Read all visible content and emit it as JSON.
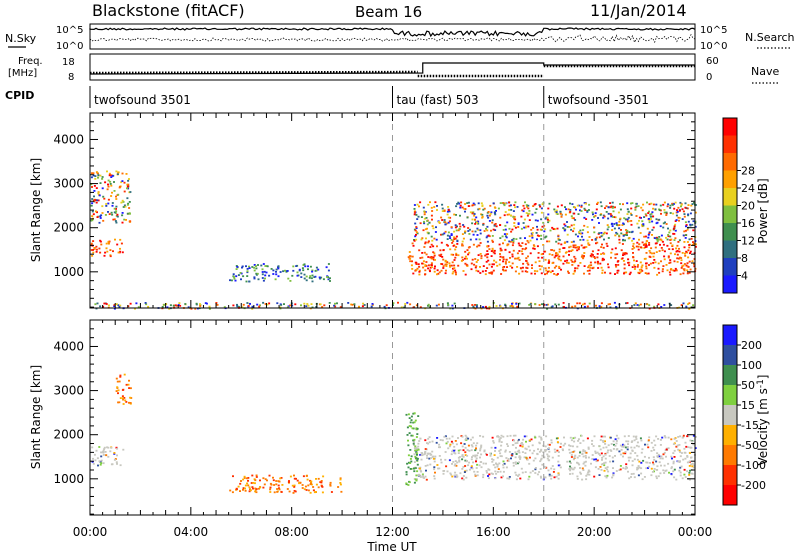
{
  "header": {
    "station": "Blackstone (fitACF)",
    "beam": "Beam 16",
    "date": "11/Jan/2014"
  },
  "labels": {
    "nsky": "N.Sky",
    "freq_line1": "Freq.",
    "freq_line2": "[MHz]",
    "cpid": "CPID",
    "nsearch": "N.Search",
    "nave": "Nave",
    "log_top": "10^5",
    "log_bottom": "10^0",
    "freq_top": "18",
    "freq_bottom": "8",
    "nave_top": "60",
    "nave_bottom": "0"
  },
  "cpid_segments": [
    {
      "label": "twofsound 3501",
      "start_hour": 0
    },
    {
      "label": "tau (fast) 503",
      "start_hour": 12
    },
    {
      "label": "twofsound -3501",
      "start_hour": 18
    }
  ],
  "chart_data": [
    {
      "type": "heatmap",
      "title": "",
      "xlabel": "Time UT",
      "ylabel": "Slant Range [km]",
      "x_range_hours": [
        0,
        24
      ],
      "x_ticks": [
        "00:00",
        "04:00",
        "08:00",
        "12:00",
        "16:00",
        "20:00",
        "00:00"
      ],
      "y_range_km": [
        180,
        4600
      ],
      "y_ticks": [
        1000,
        2000,
        3000,
        4000
      ],
      "colorbar": {
        "label": "Power [dB]",
        "ticks": [
          "4",
          "8",
          "12",
          "16",
          "20",
          "24",
          "28"
        ],
        "colors": [
          "#1a1aff",
          "#1f3fbf",
          "#2f6f7f",
          "#3f8f4f",
          "#7fbf3f",
          "#e8d020",
          "#ffa000",
          "#ff6a00",
          "#ff3000",
          "#ff0000"
        ]
      },
      "scatter_regions": [
        {
          "t0": 0.0,
          "t1": 1.3,
          "r0": 1350,
          "r1": 1750,
          "level": "high"
        },
        {
          "t0": 0.0,
          "t1": 1.6,
          "r0": 2100,
          "r1": 3300,
          "level": "mixed"
        },
        {
          "t0": 5.5,
          "t1": 9.5,
          "r0": 800,
          "r1": 1200,
          "level": "low"
        },
        {
          "t0": 12.6,
          "t1": 24.0,
          "r0": 950,
          "r1": 1700,
          "level": "high"
        },
        {
          "t0": 12.8,
          "t1": 24.0,
          "r0": 1700,
          "r1": 2600,
          "level": "mixed"
        },
        {
          "t0": 0.0,
          "t1": 24.0,
          "r0": 180,
          "r1": 320,
          "level": "mixed"
        }
      ]
    },
    {
      "type": "heatmap",
      "title": "",
      "xlabel": "Time UT",
      "ylabel": "Slant Range [km]",
      "x_range_hours": [
        0,
        24
      ],
      "x_ticks": [
        "00:00",
        "04:00",
        "08:00",
        "12:00",
        "16:00",
        "20:00",
        "00:00"
      ],
      "y_range_km": [
        180,
        4600
      ],
      "y_ticks": [
        1000,
        2000,
        3000,
        4000
      ],
      "colorbar": {
        "label": "Velocity [m s^-1]",
        "ticks": [
          "200",
          "100",
          "50",
          "15",
          "-15",
          "-50",
          "-100",
          "-200"
        ],
        "colors": [
          "#1a1aff",
          "#2f4f9f",
          "#3f8f4f",
          "#7fd03f",
          "#c8c8c0",
          "#ffb000",
          "#ff7a00",
          "#ff3000",
          "#ff0000"
        ]
      },
      "scatter_regions": [
        {
          "t0": 0.0,
          "t1": 1.3,
          "r0": 1300,
          "r1": 1750,
          "level": "zero"
        },
        {
          "t0": 1.0,
          "t1": 1.6,
          "r0": 2700,
          "r1": 3400,
          "level": "neg"
        },
        {
          "t0": 5.5,
          "t1": 10.0,
          "r0": 700,
          "r1": 1100,
          "level": "neg"
        },
        {
          "t0": 12.8,
          "t1": 24.0,
          "r0": 1000,
          "r1": 2000,
          "level": "zero"
        },
        {
          "t0": 12.5,
          "t1": 13.0,
          "r0": 800,
          "r1": 2600,
          "level": "pos"
        }
      ]
    }
  ]
}
